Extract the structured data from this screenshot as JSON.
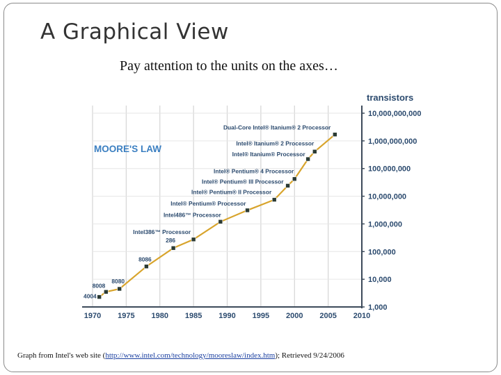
{
  "slide": {
    "title": "A Graphical View",
    "subtitle": "Pay attention to the units on the axes…",
    "footer": {
      "prefix": "Graph from Intel's web site (",
      "link_text": "http://www.intel.com/technology/mooreslaw/index.htm",
      "suffix": "); Retrieved 9/24/2006"
    }
  },
  "colors": {
    "line": "#d8a42c",
    "marker": "#2b3a33",
    "grid": "#d5d5d5",
    "text": "#2b4a6e",
    "chart_title": "#3b7fc1"
  },
  "chart_data": {
    "type": "line",
    "title": "MOORE'S LAW",
    "ylabel": "transistors",
    "xlim": [
      1970,
      2010
    ],
    "ylim": [
      1000,
      10000000000
    ],
    "y_scale": "log",
    "x_ticks": [
      "1970",
      "1975",
      "1980",
      "1985",
      "1990",
      "1995",
      "2000",
      "2005",
      "2010"
    ],
    "y_ticks": [
      "1,000",
      "10,000",
      "100,000",
      "1,000,000",
      "10,000,000",
      "100,000,000",
      "1,000,000,000",
      "10,000,000,000"
    ],
    "grid": true,
    "points": [
      {
        "x": 1971,
        "y": 2300,
        "label": "4004"
      },
      {
        "x": 1972,
        "y": 3500,
        "label": "8008"
      },
      {
        "x": 1974,
        "y": 4500,
        "label": "8080"
      },
      {
        "x": 1978,
        "y": 29000,
        "label": "8086"
      },
      {
        "x": 1982,
        "y": 134000,
        "label": "286"
      },
      {
        "x": 1985,
        "y": 275000,
        "label": "Intel386™ Processor"
      },
      {
        "x": 1989,
        "y": 1200000,
        "label": "Intel486™ Processor"
      },
      {
        "x": 1993,
        "y": 3100000,
        "label": "Intel® Pentium® Processor"
      },
      {
        "x": 1997,
        "y": 7500000,
        "label": "Intel® Pentium® II Processor"
      },
      {
        "x": 1999,
        "y": 24000000,
        "label": "Intel® Pentium® III Processor"
      },
      {
        "x": 2000,
        "y": 42000000,
        "label": "Intel® Pentium® 4 Processor"
      },
      {
        "x": 2002,
        "y": 220000000,
        "label": "Intel® Itanium® Processor"
      },
      {
        "x": 2003,
        "y": 410000000,
        "label": "Intel® Itanium® 2 Processor"
      },
      {
        "x": 2006,
        "y": 1700000000,
        "label": "Dual-Core Intel® Itanium® 2 Processor"
      }
    ]
  }
}
